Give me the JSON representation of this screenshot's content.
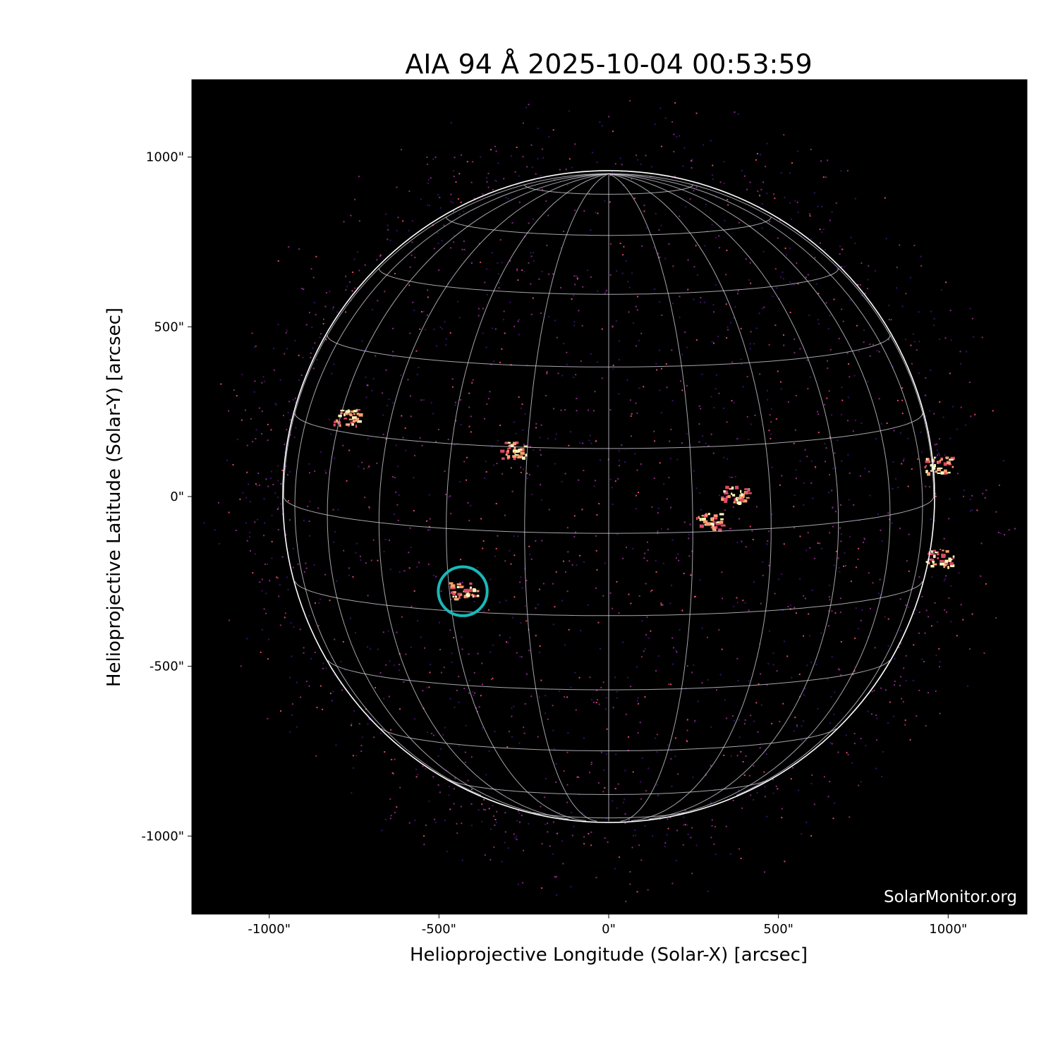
{
  "chart_data": {
    "type": "image",
    "title": "AIA 94 Å 2025-10-04 00:53:59",
    "xlabel": "Helioprojective Longitude (Solar-X) [arcsec]",
    "ylabel": "Helioprojective Latitude (Solar-Y) [arcsec]",
    "xlim": [
      -1230,
      1230
    ],
    "ylim": [
      -1230,
      1230
    ],
    "x_ticks": [
      -1000,
      -500,
      0,
      500,
      1000
    ],
    "x_tick_labels": [
      "-1000\"",
      "-500\"",
      "0\"",
      "500\"",
      "1000\""
    ],
    "y_ticks": [
      1000,
      500,
      0,
      -500,
      -1000
    ],
    "y_tick_labels": [
      "1000\"",
      "500\"",
      "0\"",
      "-500\"",
      "-1000\""
    ],
    "solar_radius_arcsec": 960,
    "grid": "heliographic graticule every 15°",
    "colormap": [
      "#000000",
      "#3b0f70",
      "#8c2981",
      "#de4968",
      "#fe9f6d",
      "#fcfdbf"
    ],
    "highlight_circle": {
      "x": -430,
      "y": -279,
      "radius": 72,
      "color": "#1ab8b8"
    },
    "bright_regions": [
      {
        "x": -430,
        "y": -275
      },
      {
        "x": -285,
        "y": 140
      },
      {
        "x": 370,
        "y": 10
      },
      {
        "x": 290,
        "y": -70
      },
      {
        "x": -770,
        "y": 235
      },
      {
        "x": 975,
        "y": -180
      },
      {
        "x": 970,
        "y": 95
      }
    ],
    "watermark": "SolarMonitor.org"
  }
}
